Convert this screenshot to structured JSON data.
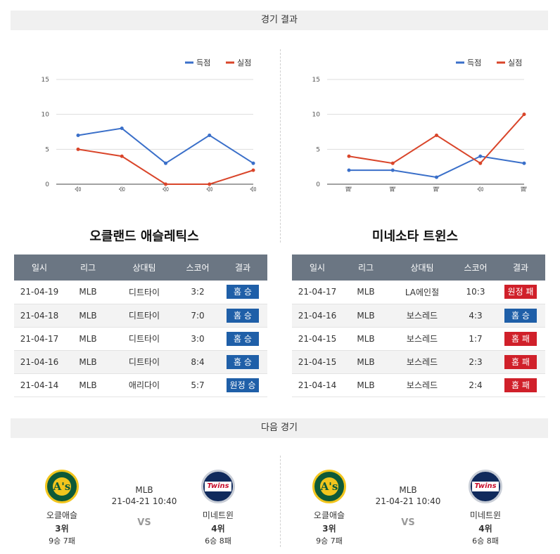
{
  "headers": {
    "results": "경기 결과",
    "next": "다음 경기"
  },
  "legend": {
    "scored": "득점",
    "allowed": "실점"
  },
  "colors": {
    "scored": "#3a6fc9",
    "allowed": "#d9452a",
    "win": "#1f5fa8",
    "loss": "#d0202a"
  },
  "chart_data": [
    {
      "type": "line",
      "categories": [
        "승",
        "승",
        "승",
        "승",
        "승"
      ],
      "series": [
        {
          "name": "득점",
          "values": [
            7,
            8,
            3,
            7,
            3
          ]
        },
        {
          "name": "실점",
          "values": [
            5,
            4,
            0,
            0,
            2
          ]
        }
      ],
      "ylim": [
        0,
        15
      ],
      "yticks": [
        0,
        5,
        10,
        15
      ],
      "legend": "top-right",
      "grid": true
    },
    {
      "type": "line",
      "categories": [
        "패",
        "패",
        "패",
        "승",
        "패"
      ],
      "series": [
        {
          "name": "득점",
          "values": [
            2,
            2,
            1,
            4,
            3
          ]
        },
        {
          "name": "실점",
          "values": [
            4,
            3,
            7,
            3,
            10
          ]
        }
      ],
      "ylim": [
        0,
        15
      ],
      "yticks": [
        0,
        5,
        10,
        15
      ],
      "legend": "top-right",
      "grid": true
    }
  ],
  "table_columns": [
    "일시",
    "리그",
    "상대팀",
    "스코어",
    "결과"
  ],
  "teams": [
    {
      "title": "오클랜드 애슬레틱스",
      "rows": [
        {
          "date": "21-04-19",
          "league": "MLB",
          "opponent": "디트타이",
          "score": "3:2",
          "result": "홈 승",
          "win": true
        },
        {
          "date": "21-04-18",
          "league": "MLB",
          "opponent": "디트타이",
          "score": "7:0",
          "result": "홈 승",
          "win": true
        },
        {
          "date": "21-04-17",
          "league": "MLB",
          "opponent": "디트타이",
          "score": "3:0",
          "result": "홈 승",
          "win": true
        },
        {
          "date": "21-04-16",
          "league": "MLB",
          "opponent": "디트타이",
          "score": "8:4",
          "result": "홈 승",
          "win": true
        },
        {
          "date": "21-04-14",
          "league": "MLB",
          "opponent": "애리다이",
          "score": "5:7",
          "result": "원정 승",
          "win": true
        }
      ]
    },
    {
      "title": "미네소타 트윈스",
      "rows": [
        {
          "date": "21-04-17",
          "league": "MLB",
          "opponent": "LA에인절",
          "score": "10:3",
          "result": "원정 패",
          "win": false
        },
        {
          "date": "21-04-16",
          "league": "MLB",
          "opponent": "보스레드",
          "score": "4:3",
          "result": "홈 승",
          "win": true
        },
        {
          "date": "21-04-15",
          "league": "MLB",
          "opponent": "보스레드",
          "score": "1:7",
          "result": "홈 패",
          "win": false
        },
        {
          "date": "21-04-15",
          "league": "MLB",
          "opponent": "보스레드",
          "score": "2:3",
          "result": "홈 패",
          "win": false
        },
        {
          "date": "21-04-14",
          "league": "MLB",
          "opponent": "보스레드",
          "score": "2:4",
          "result": "홈 패",
          "win": false
        }
      ]
    }
  ],
  "next_game": {
    "league": "MLB",
    "datetime": "21-04-21 10:40",
    "vs": "VS",
    "home": {
      "name": "오클애슬",
      "rank": "3위",
      "record": "9승 7패",
      "logo": "athletics-logo",
      "logo_text": "A's"
    },
    "away": {
      "name": "미네트윈",
      "rank": "4위",
      "record": "6승 8패",
      "logo": "twins-logo",
      "logo_text": "Twins"
    }
  }
}
